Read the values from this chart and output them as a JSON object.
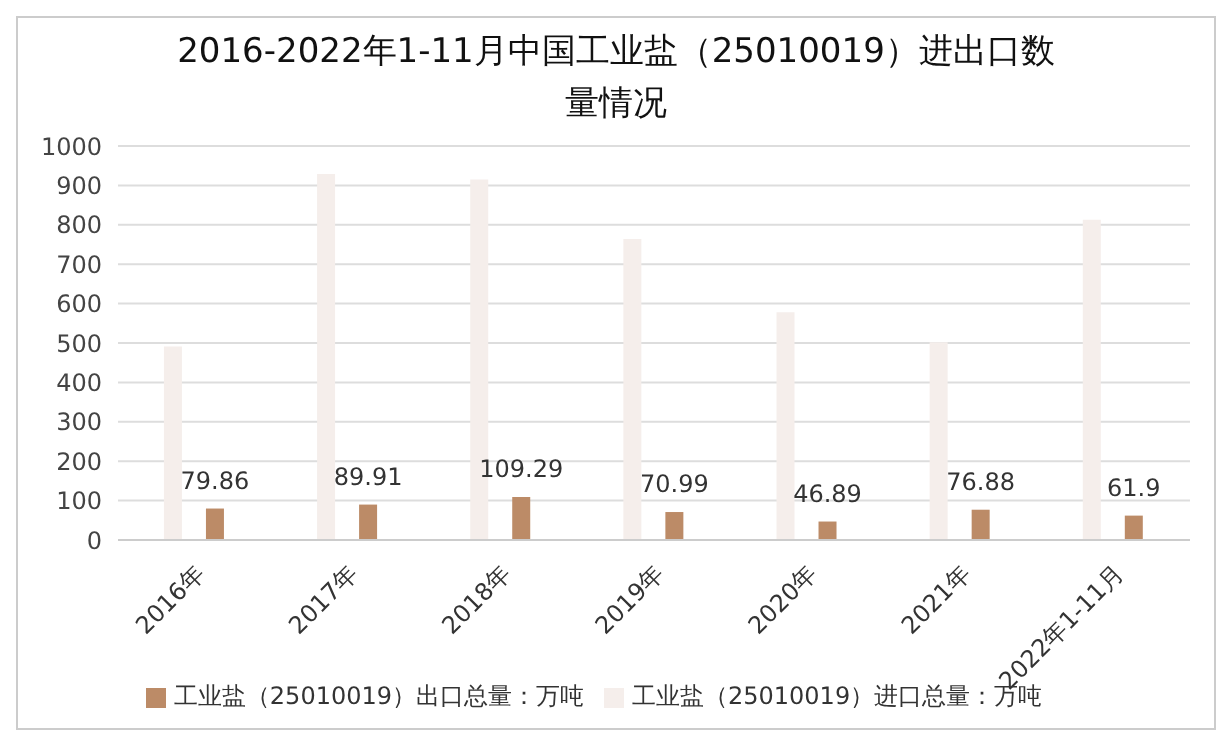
{
  "chart_data": {
    "type": "bar",
    "title": "2016-2022年1-11月中国工业盐（25010019）进出口数量情况",
    "categories": [
      "2016年",
      "2017年",
      "2018年",
      "2019年",
      "2020年",
      "2021年",
      "2022年1-11月"
    ],
    "series": [
      {
        "name": "工业盐（25010019）进口总量：万吨",
        "color": "#f5eeeb",
        "values": [
          491,
          929,
          915,
          764,
          578,
          502,
          813
        ]
      },
      {
        "name": "工业盐（25010019）出口总量：万吨",
        "color": "#bc8b67",
        "values": [
          79.86,
          89.91,
          109.29,
          70.99,
          46.89,
          76.88,
          61.9
        ],
        "value_labels": [
          "79.86",
          "89.91",
          "109.29",
          "70.99",
          "46.89",
          "76.88",
          "61.9"
        ]
      }
    ],
    "ylim": [
      0,
      1000
    ],
    "yticks": [
      0,
      100,
      200,
      300,
      400,
      500,
      600,
      700,
      800,
      900,
      1000
    ],
    "grid": "y",
    "legend": "bottom"
  }
}
